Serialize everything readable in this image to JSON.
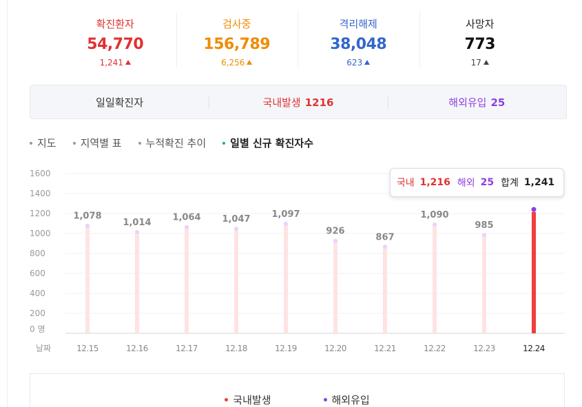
{
  "stats": [
    {
      "label": "확진환자",
      "value": "54,770",
      "delta": "1,241",
      "label_color": "#e03131",
      "value_color": "#e03131",
      "delta_color": "#e03131"
    },
    {
      "label": "검사중",
      "value": "156,789",
      "delta": "6,256",
      "label_color": "#f08c00",
      "value_color": "#f08c00",
      "delta_color": "#f08c00"
    },
    {
      "label": "격리해제",
      "value": "38,048",
      "delta": "623",
      "label_color": "#3366cc",
      "value_color": "#3366cc",
      "delta_color": "#3366cc"
    },
    {
      "label": "사망자",
      "value": "773",
      "delta": "17",
      "label_color": "#222222",
      "value_color": "#111111",
      "delta_color": "#444444"
    }
  ],
  "summary": {
    "daily_label": "일일확진자",
    "domestic_label": "국내발생",
    "domestic_value": "1216",
    "overseas_label": "해외유입",
    "overseas_value": "25"
  },
  "tabs": [
    {
      "label": "지도",
      "active": false
    },
    {
      "label": "지역별 표",
      "active": false
    },
    {
      "label": "누적확진 추이",
      "active": false
    },
    {
      "label": "일별 신규 확진자수",
      "active": true
    }
  ],
  "tooltip": {
    "domestic_label": "국내",
    "domestic_value": "1,216",
    "overseas_label": "해외",
    "overseas_value": "25",
    "total_label": "합계",
    "total_value": "1,241"
  },
  "legend": {
    "domestic": "국내발생",
    "overseas": "해외유입"
  },
  "colors": {
    "domestic": "#f03e3e",
    "overseas": "#8c3fe6",
    "bar_faded": "#ffe3e3",
    "cap_faded": "#e5d4ff"
  },
  "chart_data": {
    "type": "bar",
    "x_axis_label": "날짜",
    "y_unit_label": "0 명",
    "y_ticks": [
      200,
      400,
      600,
      800,
      1000,
      1200,
      1400,
      1600
    ],
    "ylim": [
      0,
      1600
    ],
    "categories": [
      "12.15",
      "12.16",
      "12.17",
      "12.18",
      "12.19",
      "12.20",
      "12.21",
      "12.22",
      "12.23",
      "12.24"
    ],
    "totals": [
      1078,
      1014,
      1064,
      1047,
      1097,
      926,
      867,
      1090,
      985,
      1241
    ],
    "total_labels": [
      "1,078",
      "1,014",
      "1,064",
      "1,047",
      "1,097",
      "926",
      "867",
      "1,090",
      "985",
      ""
    ],
    "series": [
      {
        "name": "국내발생",
        "values": [
          null,
          null,
          null,
          null,
          null,
          null,
          null,
          null,
          null,
          1216
        ]
      },
      {
        "name": "해외유입",
        "values": [
          null,
          null,
          null,
          null,
          null,
          null,
          null,
          null,
          null,
          25
        ]
      }
    ],
    "highlighted_index": 9
  }
}
